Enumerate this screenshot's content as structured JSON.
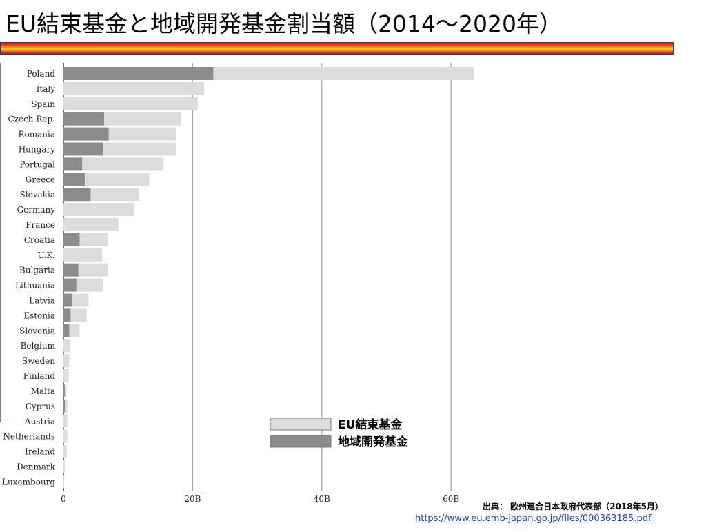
{
  "title": "EU結束基金と地域開発基金割当額（2014～2020年）",
  "source": {
    "text": "出典： 欧州連合日本政府代表部（2018年5月）",
    "url": "https://www.eu.emb-japan.go.jp/files/000363185.pdf"
  },
  "colors": {
    "cohesion": "#dcdcdc",
    "regional": "#8c8c8c",
    "gridline": "#a0a0a0",
    "axis": "#333333"
  },
  "chart_data": {
    "type": "bar",
    "orientation": "horizontal",
    "stacked": true,
    "categories": [
      "Poland",
      "Italy",
      "Spain",
      "Czech Rep.",
      "Romania",
      "Hungary",
      "Portugal",
      "Greece",
      "Slovakia",
      "Germany",
      "France",
      "Croatia",
      "U.K.",
      "Bulgaria",
      "Lithuania",
      "Latvia",
      "Estonia",
      "Slovenia",
      "Belgium",
      "Sweden",
      "Finland",
      "Malta",
      "Cyprus",
      "Austria",
      "Netherlands",
      "Ireland",
      "Denmark",
      "Luxembourg"
    ],
    "series": [
      {
        "name": "地域開発基金",
        "color": "#8c8c8c",
        "values": [
          23.2,
          0,
          0,
          6.3,
          7.0,
          6.1,
          2.9,
          3.3,
          4.2,
          0,
          0,
          2.5,
          0,
          2.3,
          2.0,
          1.3,
          1.1,
          0.9,
          0,
          0,
          0,
          0.2,
          0.3,
          0,
          0,
          0,
          0,
          0
        ]
      },
      {
        "name": "EU結束基金",
        "color": "#dcdcdc",
        "values": [
          40.4,
          21.8,
          20.8,
          11.9,
          10.5,
          11.3,
          12.6,
          10.0,
          7.5,
          11.0,
          8.5,
          4.4,
          6.0,
          4.6,
          4.1,
          2.6,
          2.5,
          1.6,
          1.0,
          0.9,
          0.8,
          0.3,
          0.3,
          0.6,
          0.6,
          0.5,
          0.2,
          0.1
        ]
      }
    ],
    "xlim": [
      0,
      67
    ],
    "xticks": [
      0,
      20,
      40,
      60
    ],
    "xticklabels": [
      "0",
      "20B",
      "40B",
      "60B"
    ],
    "legend": {
      "position": "lower-center",
      "entries": [
        {
          "label": "EU結束基金",
          "series": 1
        },
        {
          "label": "地域開発基金",
          "series": 0
        }
      ]
    },
    "grid": true
  }
}
